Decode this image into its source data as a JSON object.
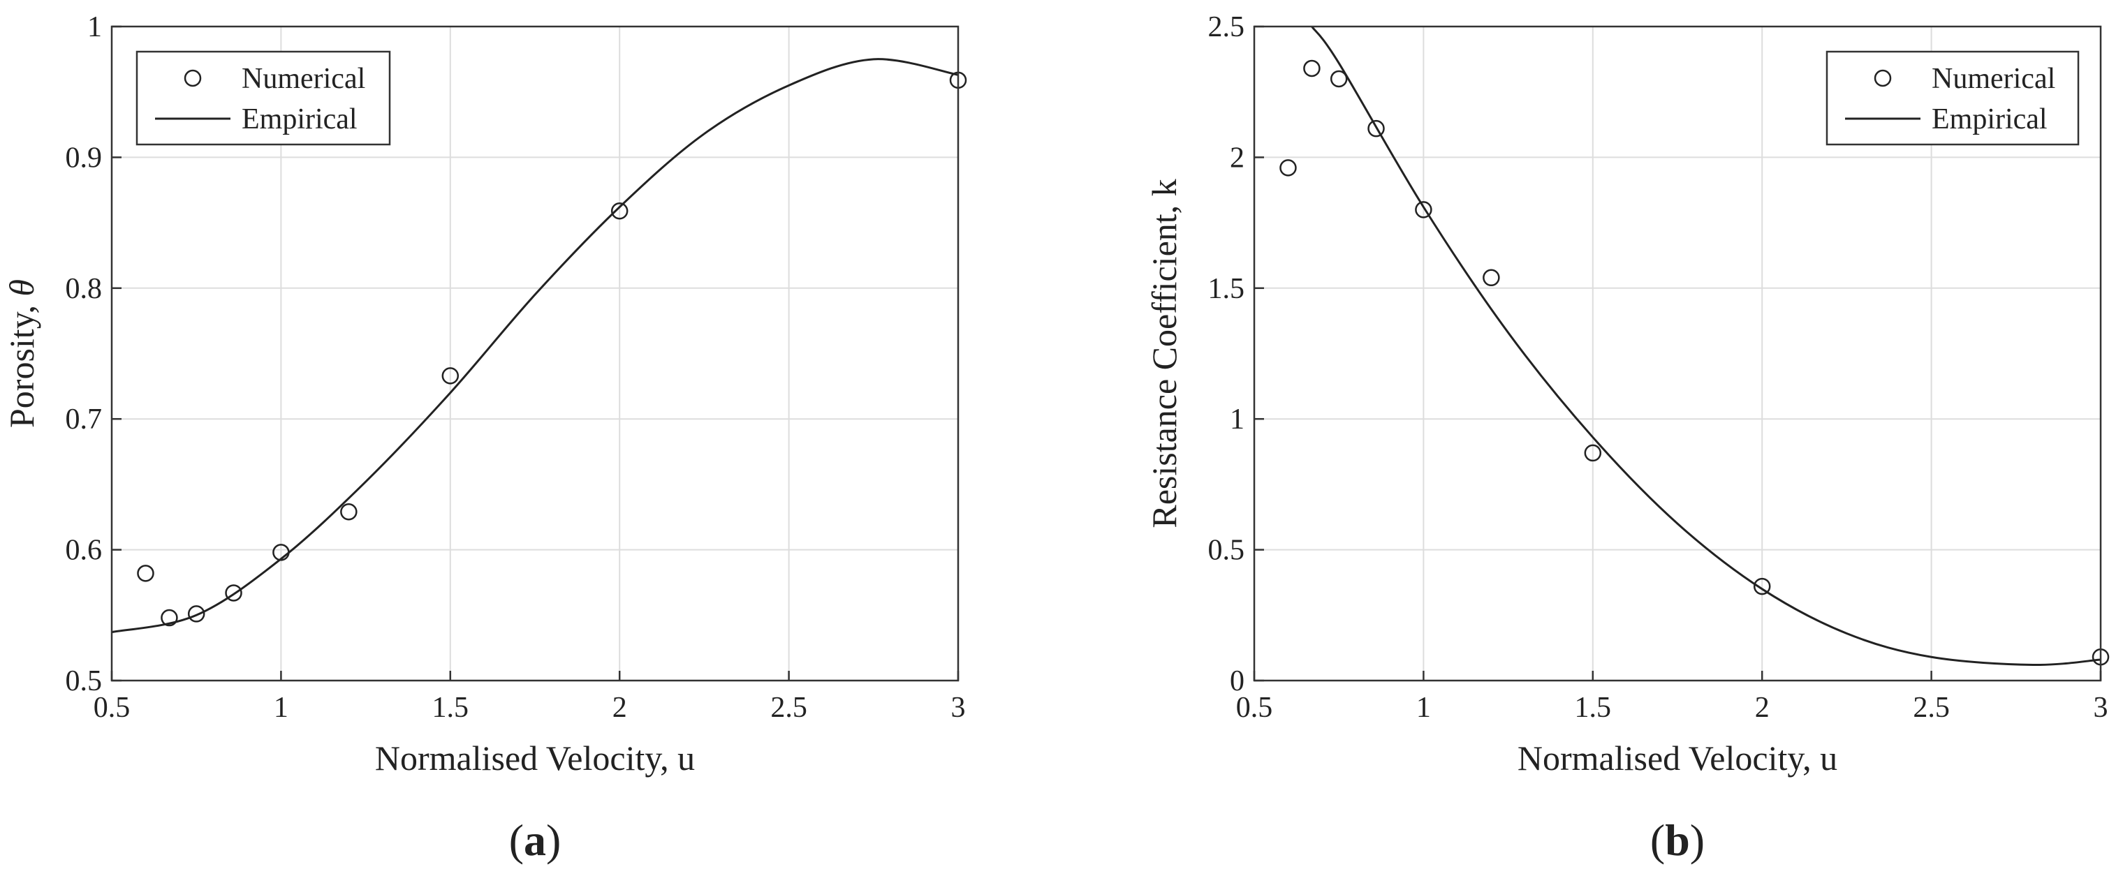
{
  "chart_data": [
    {
      "type": "scatter",
      "panel_label_open": "(",
      "panel_label": "a",
      "panel_label_close": ")",
      "xlabel": "Normalised Velocity, u",
      "ylabel_main": "Porosity, ",
      "ylabel_symbol": "θ",
      "xlim": [
        0.5,
        3
      ],
      "ylim": [
        0.5,
        1
      ],
      "xticks": [
        0.5,
        1,
        1.5,
        2,
        2.5,
        3
      ],
      "xtick_labels": [
        "0.5",
        "1",
        "1.5",
        "2",
        "2.5",
        "3"
      ],
      "yticks": [
        0.5,
        0.6,
        0.7,
        0.8,
        0.9,
        1
      ],
      "ytick_labels": [
        "0.5",
        "0.6",
        "0.7",
        "0.8",
        "0.9",
        "1"
      ],
      "grid": true,
      "legend_position": "top-left",
      "series": [
        {
          "name": "Numerical",
          "style": "markers",
          "points": [
            {
              "x": 0.6,
              "y": 0.582
            },
            {
              "x": 0.67,
              "y": 0.548
            },
            {
              "x": 0.75,
              "y": 0.551
            },
            {
              "x": 0.86,
              "y": 0.567
            },
            {
              "x": 1.0,
              "y": 0.598
            },
            {
              "x": 1.2,
              "y": 0.629
            },
            {
              "x": 1.5,
              "y": 0.733
            },
            {
              "x": 2.0,
              "y": 0.859
            },
            {
              "x": 3.0,
              "y": 0.959
            }
          ]
        },
        {
          "name": "Empirical",
          "style": "line",
          "points": [
            {
              "x": 0.5,
              "y": 0.537
            },
            {
              "x": 0.75,
              "y": 0.55
            },
            {
              "x": 1.0,
              "y": 0.593
            },
            {
              "x": 1.25,
              "y": 0.652
            },
            {
              "x": 1.5,
              "y": 0.72
            },
            {
              "x": 1.75,
              "y": 0.795
            },
            {
              "x": 2.0,
              "y": 0.862
            },
            {
              "x": 2.25,
              "y": 0.918
            },
            {
              "x": 2.5,
              "y": 0.955
            },
            {
              "x": 2.75,
              "y": 0.975
            },
            {
              "x": 3.0,
              "y": 0.963
            }
          ]
        }
      ]
    },
    {
      "type": "scatter",
      "panel_label_open": "(",
      "panel_label": "b",
      "panel_label_close": ")",
      "xlabel": "Normalised Velocity, u",
      "ylabel_main": "Resistance Coefficient, k",
      "ylabel_symbol": "",
      "xlim": [
        0.5,
        3
      ],
      "ylim": [
        0,
        2.5
      ],
      "xticks": [
        0.5,
        1,
        1.5,
        2,
        2.5,
        3
      ],
      "xtick_labels": [
        "0.5",
        "1",
        "1.5",
        "2",
        "2.5",
        "3"
      ],
      "yticks": [
        0,
        0.5,
        1,
        1.5,
        2,
        2.5
      ],
      "ytick_labels": [
        "0",
        "0.5",
        "1",
        "1.5",
        "2",
        "2.5"
      ],
      "grid": true,
      "legend_position": "top-right",
      "series": [
        {
          "name": "Numerical",
          "style": "markers",
          "points": [
            {
              "x": 0.6,
              "y": 1.96
            },
            {
              "x": 0.67,
              "y": 2.34
            },
            {
              "x": 0.75,
              "y": 2.3
            },
            {
              "x": 0.86,
              "y": 2.11
            },
            {
              "x": 1.0,
              "y": 1.8
            },
            {
              "x": 1.2,
              "y": 1.54
            },
            {
              "x": 1.5,
              "y": 0.87
            },
            {
              "x": 2.0,
              "y": 0.36
            },
            {
              "x": 3.0,
              "y": 0.09
            }
          ]
        },
        {
          "name": "Empirical",
          "style": "line",
          "points": [
            {
              "x": 0.67,
              "y": 2.5
            },
            {
              "x": 0.75,
              "y": 2.36
            },
            {
              "x": 1.0,
              "y": 1.81
            },
            {
              "x": 1.25,
              "y": 1.33
            },
            {
              "x": 1.5,
              "y": 0.93
            },
            {
              "x": 1.75,
              "y": 0.6
            },
            {
              "x": 2.0,
              "y": 0.35
            },
            {
              "x": 2.25,
              "y": 0.18
            },
            {
              "x": 2.5,
              "y": 0.09
            },
            {
              "x": 2.8,
              "y": 0.06
            },
            {
              "x": 3.0,
              "y": 0.08
            }
          ]
        }
      ]
    }
  ]
}
